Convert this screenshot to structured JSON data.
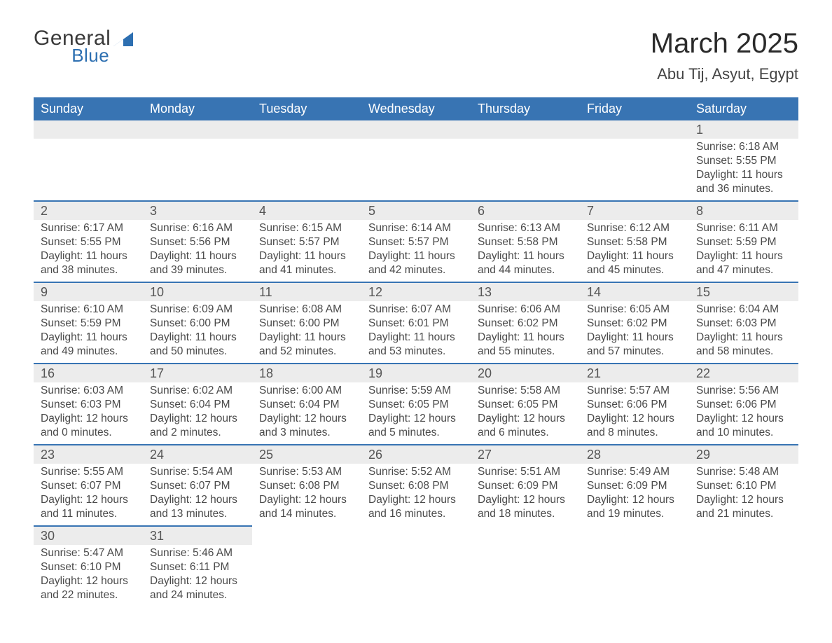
{
  "logo": {
    "text_top": "General",
    "text_bottom": "Blue",
    "accent_color": "#2d6fb1"
  },
  "title": "March 2025",
  "location": "Abu Tij, Asyut, Egypt",
  "calendar": {
    "header_bg": "#3874b3",
    "header_fg": "#ffffff",
    "row_sep_color": "#3874b3",
    "daynum_bg": "#ececec",
    "text_color": "#4a4a4a",
    "font_size_header_pt": 14,
    "font_size_body_pt": 12,
    "weekdays": [
      "Sunday",
      "Monday",
      "Tuesday",
      "Wednesday",
      "Thursday",
      "Friday",
      "Saturday"
    ],
    "weeks": [
      [
        null,
        null,
        null,
        null,
        null,
        null,
        {
          "n": "1",
          "sunrise": "Sunrise: 6:18 AM",
          "sunset": "Sunset: 5:55 PM",
          "dl1": "Daylight: 11 hours",
          "dl2": "and 36 minutes."
        }
      ],
      [
        {
          "n": "2",
          "sunrise": "Sunrise: 6:17 AM",
          "sunset": "Sunset: 5:55 PM",
          "dl1": "Daylight: 11 hours",
          "dl2": "and 38 minutes."
        },
        {
          "n": "3",
          "sunrise": "Sunrise: 6:16 AM",
          "sunset": "Sunset: 5:56 PM",
          "dl1": "Daylight: 11 hours",
          "dl2": "and 39 minutes."
        },
        {
          "n": "4",
          "sunrise": "Sunrise: 6:15 AM",
          "sunset": "Sunset: 5:57 PM",
          "dl1": "Daylight: 11 hours",
          "dl2": "and 41 minutes."
        },
        {
          "n": "5",
          "sunrise": "Sunrise: 6:14 AM",
          "sunset": "Sunset: 5:57 PM",
          "dl1": "Daylight: 11 hours",
          "dl2": "and 42 minutes."
        },
        {
          "n": "6",
          "sunrise": "Sunrise: 6:13 AM",
          "sunset": "Sunset: 5:58 PM",
          "dl1": "Daylight: 11 hours",
          "dl2": "and 44 minutes."
        },
        {
          "n": "7",
          "sunrise": "Sunrise: 6:12 AM",
          "sunset": "Sunset: 5:58 PM",
          "dl1": "Daylight: 11 hours",
          "dl2": "and 45 minutes."
        },
        {
          "n": "8",
          "sunrise": "Sunrise: 6:11 AM",
          "sunset": "Sunset: 5:59 PM",
          "dl1": "Daylight: 11 hours",
          "dl2": "and 47 minutes."
        }
      ],
      [
        {
          "n": "9",
          "sunrise": "Sunrise: 6:10 AM",
          "sunset": "Sunset: 5:59 PM",
          "dl1": "Daylight: 11 hours",
          "dl2": "and 49 minutes."
        },
        {
          "n": "10",
          "sunrise": "Sunrise: 6:09 AM",
          "sunset": "Sunset: 6:00 PM",
          "dl1": "Daylight: 11 hours",
          "dl2": "and 50 minutes."
        },
        {
          "n": "11",
          "sunrise": "Sunrise: 6:08 AM",
          "sunset": "Sunset: 6:00 PM",
          "dl1": "Daylight: 11 hours",
          "dl2": "and 52 minutes."
        },
        {
          "n": "12",
          "sunrise": "Sunrise: 6:07 AM",
          "sunset": "Sunset: 6:01 PM",
          "dl1": "Daylight: 11 hours",
          "dl2": "and 53 minutes."
        },
        {
          "n": "13",
          "sunrise": "Sunrise: 6:06 AM",
          "sunset": "Sunset: 6:02 PM",
          "dl1": "Daylight: 11 hours",
          "dl2": "and 55 minutes."
        },
        {
          "n": "14",
          "sunrise": "Sunrise: 6:05 AM",
          "sunset": "Sunset: 6:02 PM",
          "dl1": "Daylight: 11 hours",
          "dl2": "and 57 minutes."
        },
        {
          "n": "15",
          "sunrise": "Sunrise: 6:04 AM",
          "sunset": "Sunset: 6:03 PM",
          "dl1": "Daylight: 11 hours",
          "dl2": "and 58 minutes."
        }
      ],
      [
        {
          "n": "16",
          "sunrise": "Sunrise: 6:03 AM",
          "sunset": "Sunset: 6:03 PM",
          "dl1": "Daylight: 12 hours",
          "dl2": "and 0 minutes."
        },
        {
          "n": "17",
          "sunrise": "Sunrise: 6:02 AM",
          "sunset": "Sunset: 6:04 PM",
          "dl1": "Daylight: 12 hours",
          "dl2": "and 2 minutes."
        },
        {
          "n": "18",
          "sunrise": "Sunrise: 6:00 AM",
          "sunset": "Sunset: 6:04 PM",
          "dl1": "Daylight: 12 hours",
          "dl2": "and 3 minutes."
        },
        {
          "n": "19",
          "sunrise": "Sunrise: 5:59 AM",
          "sunset": "Sunset: 6:05 PM",
          "dl1": "Daylight: 12 hours",
          "dl2": "and 5 minutes."
        },
        {
          "n": "20",
          "sunrise": "Sunrise: 5:58 AM",
          "sunset": "Sunset: 6:05 PM",
          "dl1": "Daylight: 12 hours",
          "dl2": "and 6 minutes."
        },
        {
          "n": "21",
          "sunrise": "Sunrise: 5:57 AM",
          "sunset": "Sunset: 6:06 PM",
          "dl1": "Daylight: 12 hours",
          "dl2": "and 8 minutes."
        },
        {
          "n": "22",
          "sunrise": "Sunrise: 5:56 AM",
          "sunset": "Sunset: 6:06 PM",
          "dl1": "Daylight: 12 hours",
          "dl2": "and 10 minutes."
        }
      ],
      [
        {
          "n": "23",
          "sunrise": "Sunrise: 5:55 AM",
          "sunset": "Sunset: 6:07 PM",
          "dl1": "Daylight: 12 hours",
          "dl2": "and 11 minutes."
        },
        {
          "n": "24",
          "sunrise": "Sunrise: 5:54 AM",
          "sunset": "Sunset: 6:07 PM",
          "dl1": "Daylight: 12 hours",
          "dl2": "and 13 minutes."
        },
        {
          "n": "25",
          "sunrise": "Sunrise: 5:53 AM",
          "sunset": "Sunset: 6:08 PM",
          "dl1": "Daylight: 12 hours",
          "dl2": "and 14 minutes."
        },
        {
          "n": "26",
          "sunrise": "Sunrise: 5:52 AM",
          "sunset": "Sunset: 6:08 PM",
          "dl1": "Daylight: 12 hours",
          "dl2": "and 16 minutes."
        },
        {
          "n": "27",
          "sunrise": "Sunrise: 5:51 AM",
          "sunset": "Sunset: 6:09 PM",
          "dl1": "Daylight: 12 hours",
          "dl2": "and 18 minutes."
        },
        {
          "n": "28",
          "sunrise": "Sunrise: 5:49 AM",
          "sunset": "Sunset: 6:09 PM",
          "dl1": "Daylight: 12 hours",
          "dl2": "and 19 minutes."
        },
        {
          "n": "29",
          "sunrise": "Sunrise: 5:48 AM",
          "sunset": "Sunset: 6:10 PM",
          "dl1": "Daylight: 12 hours",
          "dl2": "and 21 minutes."
        }
      ],
      [
        {
          "n": "30",
          "sunrise": "Sunrise: 5:47 AM",
          "sunset": "Sunset: 6:10 PM",
          "dl1": "Daylight: 12 hours",
          "dl2": "and 22 minutes."
        },
        {
          "n": "31",
          "sunrise": "Sunrise: 5:46 AM",
          "sunset": "Sunset: 6:11 PM",
          "dl1": "Daylight: 12 hours",
          "dl2": "and 24 minutes."
        },
        null,
        null,
        null,
        null,
        null
      ]
    ]
  }
}
